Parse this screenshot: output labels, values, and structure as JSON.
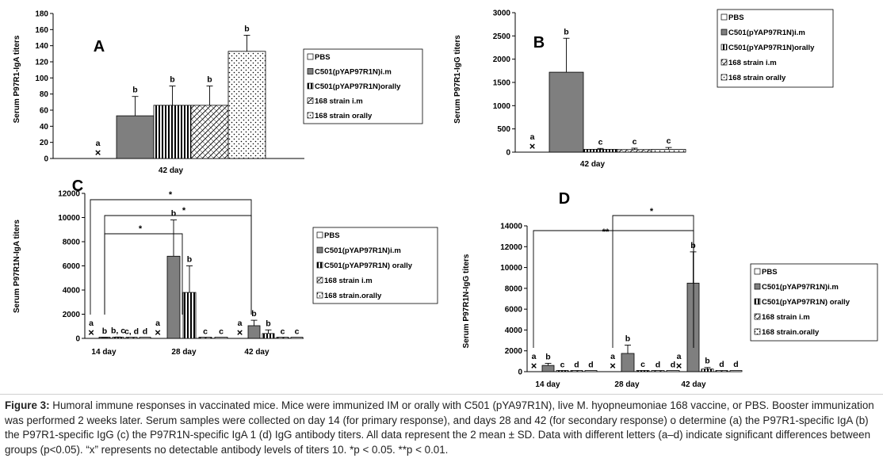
{
  "chart_data": [
    {
      "type": "bar",
      "panel_label": "A",
      "ylabel": "Serum P97R1-IgA titers",
      "ylim": [
        0,
        180
      ],
      "yticks": [
        "0",
        "20",
        "40",
        "60",
        "80",
        "100",
        "120",
        "140",
        "160",
        "180"
      ],
      "categories": [
        "42 day"
      ],
      "series": [
        {
          "name": "PBS",
          "values": [
            0
          ],
          "errors": [
            0
          ],
          "letters": [
            "a"
          ],
          "no_detect": [
            true
          ]
        },
        {
          "name": "C501(pYAP97R1N)i.m",
          "values": [
            53
          ],
          "errors": [
            24
          ],
          "letters": [
            "b"
          ],
          "no_detect": [
            false
          ]
        },
        {
          "name": "C501(pYAP97R1N)orally",
          "values": [
            66
          ],
          "errors": [
            24
          ],
          "letters": [
            "b"
          ],
          "no_detect": [
            false
          ]
        },
        {
          "name": "168 strain i.m",
          "values": [
            66
          ],
          "errors": [
            24
          ],
          "letters": [
            "b"
          ],
          "no_detect": [
            false
          ]
        },
        {
          "name": "168 strain orally",
          "values": [
            133
          ],
          "errors": [
            20
          ],
          "letters": [
            "b"
          ],
          "no_detect": [
            false
          ]
        }
      ]
    },
    {
      "type": "bar",
      "panel_label": "B",
      "ylabel": "Serum P97R1-IgG titers",
      "ylim": [
        0,
        3000
      ],
      "yticks": [
        "0",
        "500",
        "1000",
        "1500",
        "2000",
        "2500",
        "3000"
      ],
      "categories": [
        "42 day"
      ],
      "series": [
        {
          "name": "PBS",
          "values": [
            0
          ],
          "errors": [
            0
          ],
          "letters": [
            "a"
          ],
          "no_detect": [
            true
          ]
        },
        {
          "name": "C501(pYAP97R1N)i.m",
          "values": [
            1720
          ],
          "errors": [
            730
          ],
          "letters": [
            "b"
          ],
          "no_detect": [
            false
          ]
        },
        {
          "name": "C501(pYAP97R1N)orally",
          "values": [
            60
          ],
          "errors": [
            20
          ],
          "letters": [
            "c"
          ],
          "no_detect": [
            false
          ]
        },
        {
          "name": "168 strain i.m",
          "values": [
            55
          ],
          "errors": [
            30
          ],
          "letters": [
            "c"
          ],
          "no_detect": [
            false
          ]
        },
        {
          "name": "168 strain orally",
          "values": [
            60
          ],
          "errors": [
            40
          ],
          "letters": [
            "c"
          ],
          "no_detect": [
            false
          ]
        }
      ]
    },
    {
      "type": "bar",
      "panel_label": "C",
      "ylabel": "Serum P97R1N-IgA titers",
      "ylim": [
        0,
        12000
      ],
      "yticks": [
        "0",
        "2000",
        "4000",
        "6000",
        "8000",
        "10000",
        "12000"
      ],
      "categories": [
        "14 day",
        "28 day",
        "42 day"
      ],
      "series": [
        {
          "name": "PBS",
          "values": [
            0,
            0,
            0
          ],
          "errors": [
            0,
            0,
            0
          ],
          "letters": [
            "a",
            "a",
            "a"
          ],
          "no_detect": [
            true,
            true,
            true
          ]
        },
        {
          "name": "C501(pYAP97R1N)i.m",
          "values": [
            60,
            6800,
            1050
          ],
          "errors": [
            20,
            3000,
            450
          ],
          "letters": [
            "b",
            "b",
            "b"
          ],
          "no_detect": [
            false,
            false,
            false
          ]
        },
        {
          "name": "C501(pYAP97R1N) orally",
          "values": [
            70,
            3800,
            400
          ],
          "errors": [
            40,
            2200,
            300
          ],
          "letters": [
            "b, c",
            "b",
            "b"
          ],
          "no_detect": [
            false,
            false,
            false
          ]
        },
        {
          "name": "168 strain i.m",
          "values": [
            20,
            20,
            20
          ],
          "errors": [
            0,
            0,
            0
          ],
          "letters": [
            "c, d",
            "c",
            "c"
          ],
          "no_detect": [
            false,
            false,
            false
          ]
        },
        {
          "name": "168 strain.orally",
          "values": [
            20,
            20,
            20
          ],
          "errors": [
            0,
            0,
            0
          ],
          "letters": [
            "d",
            "c",
            "c"
          ],
          "no_detect": [
            false,
            false,
            false
          ]
        }
      ],
      "significance": [
        {
          "from": "14 day",
          "to": "28 day",
          "label": "*"
        },
        {
          "from": "14 day",
          "to": "42 day",
          "label": "*"
        },
        {
          "from": "14 day",
          "to": "42 day",
          "label": "*"
        }
      ]
    },
    {
      "type": "bar",
      "panel_label": "D",
      "ylabel": "Serum P97R1N-IgG titers",
      "ylim": [
        0,
        14000
      ],
      "yticks": [
        "0",
        "2000",
        "4000",
        "6000",
        "8000",
        "10000",
        "12000",
        "14000"
      ],
      "categories": [
        "14 day",
        "28 day",
        "42 day"
      ],
      "series": [
        {
          "name": "PBS",
          "values": [
            0,
            0,
            0
          ],
          "errors": [
            0,
            0,
            0
          ],
          "letters": [
            "a",
            "a",
            "a"
          ],
          "no_detect": [
            true,
            true,
            true
          ]
        },
        {
          "name": "C501(pYAP97R1N)i.m",
          "values": [
            600,
            1750,
            8500
          ],
          "errors": [
            200,
            800,
            3000
          ],
          "letters": [
            "b",
            "b",
            "b"
          ],
          "no_detect": [
            false,
            false,
            false
          ]
        },
        {
          "name": "C501(pYAP97R1N) orally",
          "values": [
            40,
            90,
            250
          ],
          "errors": [
            0,
            0,
            150
          ],
          "letters": [
            "c",
            "c",
            "b"
          ],
          "no_detect": [
            false,
            false,
            false
          ]
        },
        {
          "name": "168 strain i.m",
          "values": [
            20,
            20,
            80
          ],
          "errors": [
            0,
            0,
            0
          ],
          "letters": [
            "d",
            "d",
            "d"
          ],
          "no_detect": [
            false,
            false,
            false
          ]
        },
        {
          "name": "168 strain.orally",
          "values": [
            20,
            20,
            80
          ],
          "errors": [
            0,
            0,
            0
          ],
          "letters": [
            "d",
            "d",
            "d"
          ],
          "no_detect": [
            false,
            false,
            false
          ]
        }
      ],
      "significance": [
        {
          "from": "14 day",
          "to": "42 day",
          "label": "**"
        },
        {
          "from": "28 day",
          "to": "42 day",
          "label": "*"
        }
      ]
    }
  ],
  "caption": {
    "label": "Figure 3:",
    "text": "Humoral immune responses in vaccinated mice. Mice were immunized IM or orally with C501 (pYA97R1N), live M. hyopneumoniae 168 vaccine, or PBS. Booster immunization was performed 2 weeks later. Serum samples were collected on day 14 (for primary response), and days 28 and 42 (for secondary response) o determine (a) the P97R1-specific IgA (b) the P97R1-specific IgG (c) the P97R1N-specific IgA 1 (d) IgG antibody titers. All data represent the 2 mean ± SD. Data with different letters (a–d) indicate significant differences between groups (p<0.05). “x” represents no detectable antibody levels of titers 10. *p < 0.05. **p < 0.01."
  }
}
